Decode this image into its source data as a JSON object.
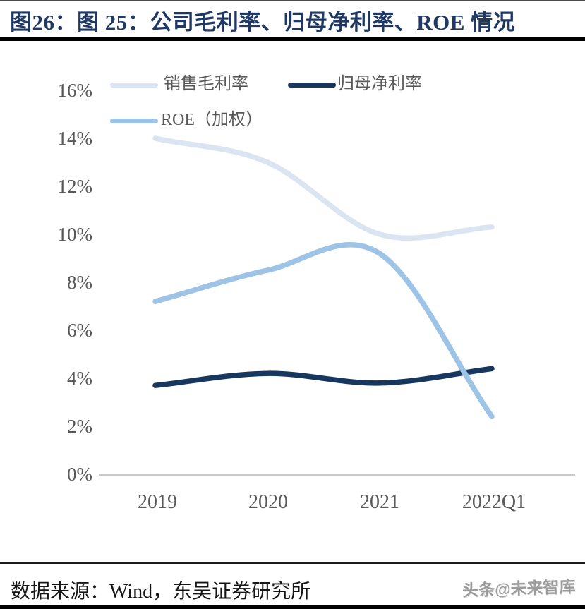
{
  "header": {
    "title": "图26：图 25：公司毛利率、归母净利率、ROE 情况"
  },
  "chart_data": {
    "type": "line",
    "title": "公司毛利率、归母净利率、ROE 情况",
    "categories": [
      "2019",
      "2020",
      "2021",
      "2022Q1"
    ],
    "series": [
      {
        "name": "销售毛利率",
        "color": "#dbe5f1",
        "values": [
          14.0,
          13.0,
          10.0,
          10.3
        ]
      },
      {
        "name": "归母净利率",
        "color": "#17375e",
        "values": [
          3.7,
          4.2,
          3.8,
          4.4
        ]
      },
      {
        "name": "ROE（加权）",
        "color": "#9dc3e6",
        "values": [
          7.2,
          8.5,
          9.2,
          2.4
        ]
      }
    ],
    "y_ticks": [
      "16%",
      "14%",
      "12%",
      "10%",
      "8%",
      "6%",
      "4%",
      "2%",
      "0%"
    ],
    "ylim": [
      0,
      16
    ],
    "unit": "%",
    "smooth": true,
    "grid": false,
    "legend_position": "top-left"
  },
  "footer": {
    "source": "数据来源：Wind，东吴证券研究所",
    "watermark": "头条@未来智库"
  }
}
